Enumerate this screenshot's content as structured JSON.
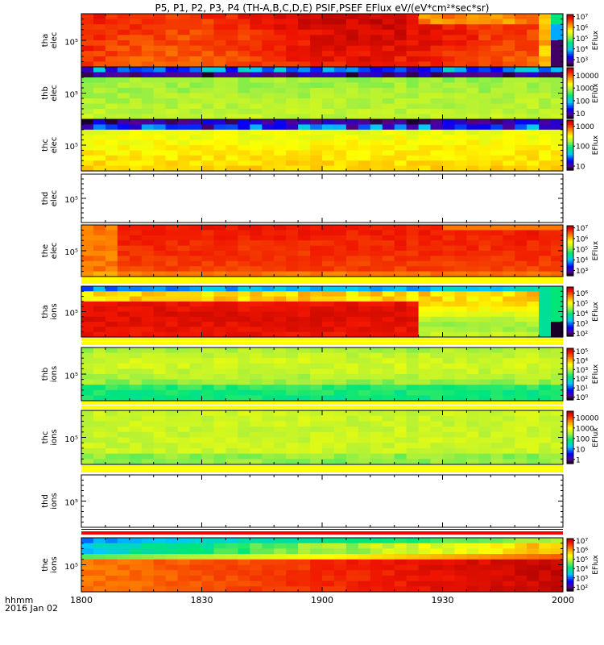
{
  "chart_data": {
    "type": "heatmap",
    "title": "P5, P1, P2, P3, P4  (TH-A,B,C,D,E)  PSIF,PSEF EFlux eV/(eV*cm²*sec*sr)",
    "x_ticks": [
      "1800",
      "1830",
      "1900",
      "1930",
      "2000"
    ],
    "x_label_line1": "hhmm",
    "x_label_line2": "2016 Jan 02",
    "colorbar_label": "EFlux",
    "panels": [
      {
        "name": "tha-elec",
        "label1": "tha",
        "label2": "elec",
        "ytick": "10⁵",
        "has_data": true,
        "colorbar_ticks": [
          [
            "10⁷",
            7
          ],
          [
            "10⁶",
            6
          ],
          [
            "10⁵",
            5
          ],
          [
            "10⁴",
            4
          ],
          [
            "10³",
            3
          ]
        ],
        "cmin": 2.4,
        "cmax": 7.2
      },
      {
        "name": "thb-elec",
        "label1": "thb",
        "label2": "elec",
        "ytick": "10⁵",
        "has_data": true,
        "colorbar_ticks": [
          [
            "10000",
            4
          ],
          [
            "1000",
            3
          ],
          [
            "100",
            2
          ],
          [
            "10",
            1
          ]
        ],
        "cmin": 0.6,
        "cmax": 4.6
      },
      {
        "name": "thc-elec",
        "label1": "thc",
        "label2": "elec",
        "ytick": "10⁵",
        "has_data": true,
        "colorbar_ticks": [
          [
            "1000",
            3
          ],
          [
            "100",
            2
          ],
          [
            "10",
            1
          ]
        ],
        "cmin": 0.8,
        "cmax": 3.3
      },
      {
        "name": "thd-elec",
        "label1": "thd",
        "label2": "elec",
        "ytick": "10⁵",
        "has_data": false
      },
      {
        "name": "the-elec",
        "label1": "the",
        "label2": "elec",
        "ytick": "10⁵",
        "has_data": true,
        "colorbar_ticks": [
          [
            "10⁷",
            7
          ],
          [
            "10⁶",
            6
          ],
          [
            "10⁵",
            5
          ],
          [
            "10⁴",
            4
          ],
          [
            "10³",
            3
          ]
        ],
        "cmin": 2.5,
        "cmax": 7.2
      },
      {
        "name": "tha-ions",
        "label1": "tha",
        "label2": "ions",
        "ytick": "10⁵",
        "has_data": true,
        "colorbar_ticks": [
          [
            "10⁶",
            6
          ],
          [
            "10⁵",
            5
          ],
          [
            "10⁴",
            4
          ],
          [
            "10³",
            3
          ],
          [
            "10²",
            2
          ]
        ],
        "cmin": 1.7,
        "cmax": 6.6
      },
      {
        "name": "thb-ions",
        "label1": "thb",
        "label2": "ions",
        "ytick": "10⁵",
        "has_data": true,
        "colorbar_ticks": [
          [
            "10⁵",
            5
          ],
          [
            "10⁴",
            4
          ],
          [
            "10³",
            3
          ],
          [
            "10²",
            2
          ],
          [
            "10¹",
            1
          ],
          [
            "10⁰",
            0
          ]
        ],
        "cmin": -0.3,
        "cmax": 5.3
      },
      {
        "name": "thc-ions",
        "label1": "thc",
        "label2": "ions",
        "ytick": "10⁵",
        "has_data": true,
        "colorbar_ticks": [
          [
            "10000",
            4
          ],
          [
            "1000",
            3
          ],
          [
            "100",
            2
          ],
          [
            "10",
            1
          ],
          [
            "1",
            0
          ]
        ],
        "cmin": -0.4,
        "cmax": 4.6
      },
      {
        "name": "thd-ions",
        "label1": "thd",
        "label2": "ions",
        "ytick": "10⁵",
        "has_data": false
      },
      {
        "name": "the-ions",
        "label1": "the",
        "label2": "ions",
        "ytick": "10⁵",
        "has_data": true,
        "colorbar_ticks": [
          [
            "10⁷",
            7
          ],
          [
            "10⁶",
            6
          ],
          [
            "10⁵",
            5
          ],
          [
            "10⁴",
            4
          ],
          [
            "10³",
            3
          ],
          [
            "10²",
            2
          ]
        ],
        "cmin": 1.6,
        "cmax": 7.2
      }
    ]
  }
}
